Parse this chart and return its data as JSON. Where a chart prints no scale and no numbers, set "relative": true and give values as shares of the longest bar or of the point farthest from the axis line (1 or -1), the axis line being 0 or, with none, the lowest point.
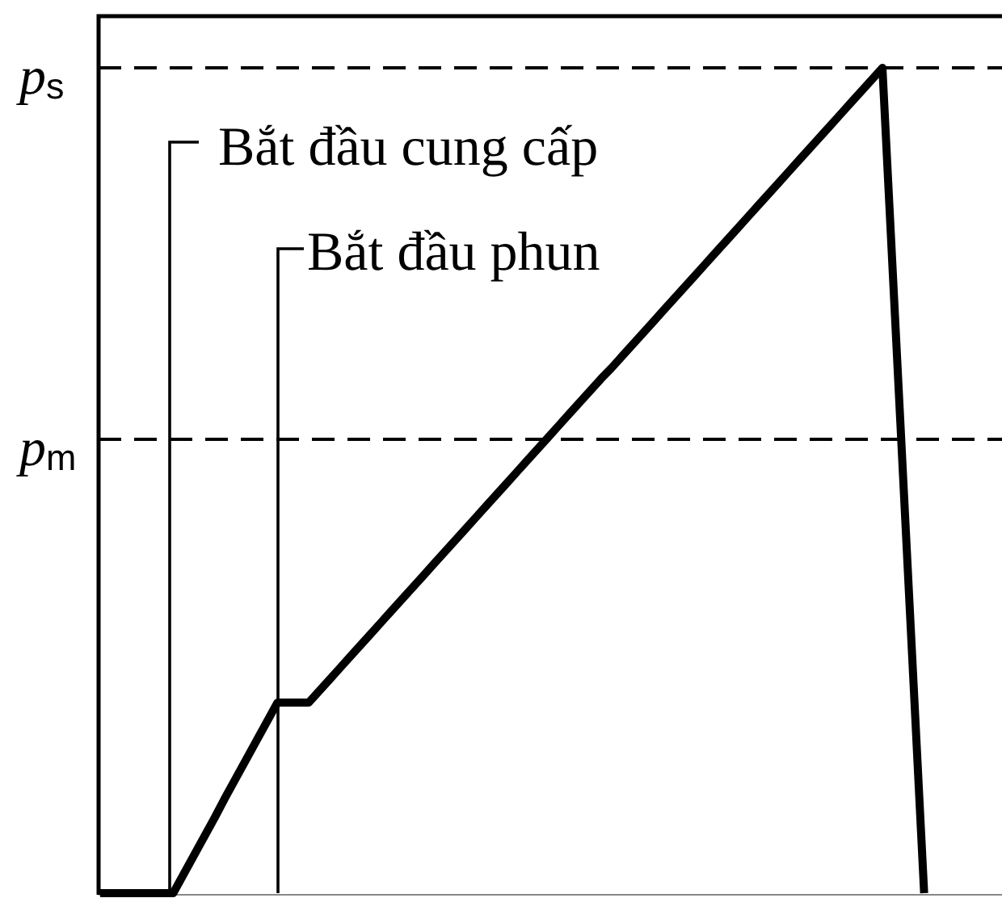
{
  "chart_data": {
    "type": "line",
    "relative": true,
    "color": "#000000",
    "categories": [
      null,
      null,
      null,
      null,
      null,
      null,
      null,
      null,
      null,
      null,
      null,
      null,
      null,
      null,
      null,
      null,
      null,
      null,
      null,
      null,
      null,
      null,
      null,
      null,
      null,
      null,
      null,
      null,
      null,
      null,
      null,
      null,
      null,
      null,
      null,
      null,
      null,
      null,
      null,
      null,
      null,
      null,
      null,
      null,
      null,
      null,
      null,
      null,
      null,
      null,
      null,
      null,
      null,
      null,
      null,
      null,
      null,
      null,
      null,
      null,
      null,
      null,
      null,
      null,
      null,
      null,
      null,
      null,
      null,
      null,
      null,
      null,
      null,
      null,
      null,
      null,
      null,
      null,
      null,
      null,
      null,
      null,
      null,
      null,
      null,
      null,
      null
    ],
    "values": [
      0,
      0,
      0,
      0,
      0,
      0,
      0,
      0,
      0.023,
      0.046,
      0.069,
      0.092,
      0.116,
      0.139,
      0.162,
      0.185,
      0.208,
      0.231,
      0.231,
      0.231,
      0.231,
      0.245,
      0.259,
      0.273,
      0.287,
      0.301,
      0.315,
      0.329,
      0.343,
      0.357,
      0.371,
      0.385,
      0.399,
      0.413,
      0.427,
      0.441,
      0.455,
      0.469,
      0.483,
      0.497,
      0.511,
      0.525,
      0.539,
      0.553,
      0.567,
      0.581,
      0.595,
      0.609,
      0.623,
      0.636,
      0.65,
      0.664,
      0.678,
      0.692,
      0.706,
      0.72,
      0.734,
      0.748,
      0.762,
      0.776,
      0.79,
      0.804,
      0.818,
      0.832,
      0.846,
      0.86,
      0.874,
      0.888,
      0.902,
      0.916,
      0.93,
      0.944,
      0.958,
      0.972,
      0.986,
      1,
      0.75,
      0.5,
      0.25,
      0,
      null,
      null,
      null,
      null,
      null,
      null,
      null
    ],
    "ref_lines": [
      {
        "axis": "y",
        "value": 1,
        "label": "p$_{s}$",
        "line_style": "dashed"
      },
      {
        "axis": "y",
        "value": 0.55,
        "label": "p$_{m}$",
        "line_style": "dashed"
      }
    ],
    "annotations": [
      "Bắt đầu cung cấp",
      "Bắt đầu phun"
    ]
  }
}
